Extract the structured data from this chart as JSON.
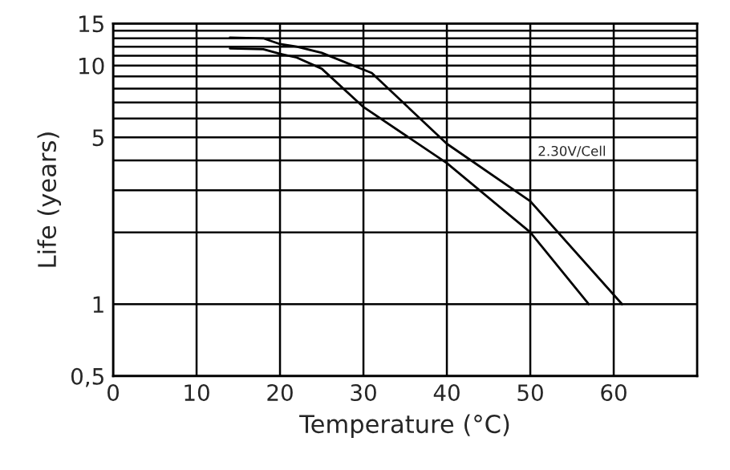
{
  "chart_data": {
    "type": "line",
    "xlabel": "Temperature (°C)",
    "ylabel": "Life (years)",
    "log": "y",
    "xlim": [
      0,
      70
    ],
    "xticks": [
      0,
      10,
      20,
      30,
      40,
      50,
      60
    ],
    "ylim": [
      0.5,
      15
    ],
    "yticks": [
      {
        "value": 0.5,
        "label": "0,5"
      },
      1,
      {
        "value": 2,
        "label": null
      },
      {
        "value": 3,
        "label": null
      },
      {
        "value": 4,
        "label": null
      },
      5,
      {
        "value": 6,
        "label": null
      },
      {
        "value": 7,
        "label": null
      },
      {
        "value": 8,
        "label": null
      },
      {
        "value": 9,
        "label": null
      },
      10,
      {
        "value": 11,
        "label": null
      },
      {
        "value": 12,
        "label": null
      },
      {
        "value": 13,
        "label": null
      },
      {
        "value": 14,
        "label": null
      },
      15
    ],
    "grid": true,
    "marker": "none",
    "line_style": "solid",
    "series": [
      {
        "color": "#000000",
        "x": [
          14,
          18,
          20,
          22,
          25,
          31,
          40,
          50,
          61
        ],
        "values": [
          13.1,
          13.0,
          12.3,
          12.0,
          11.3,
          9.3,
          4.7,
          2.7,
          1.0
        ]
      },
      {
        "color": "#000000",
        "x": [
          14,
          18,
          20,
          22,
          25,
          30,
          40,
          50,
          57
        ],
        "values": [
          11.8,
          11.7,
          11.2,
          10.8,
          9.7,
          6.7,
          3.9,
          2.0,
          1.0
        ]
      }
    ],
    "annotations": [
      "2.30V/Cell"
    ]
  }
}
